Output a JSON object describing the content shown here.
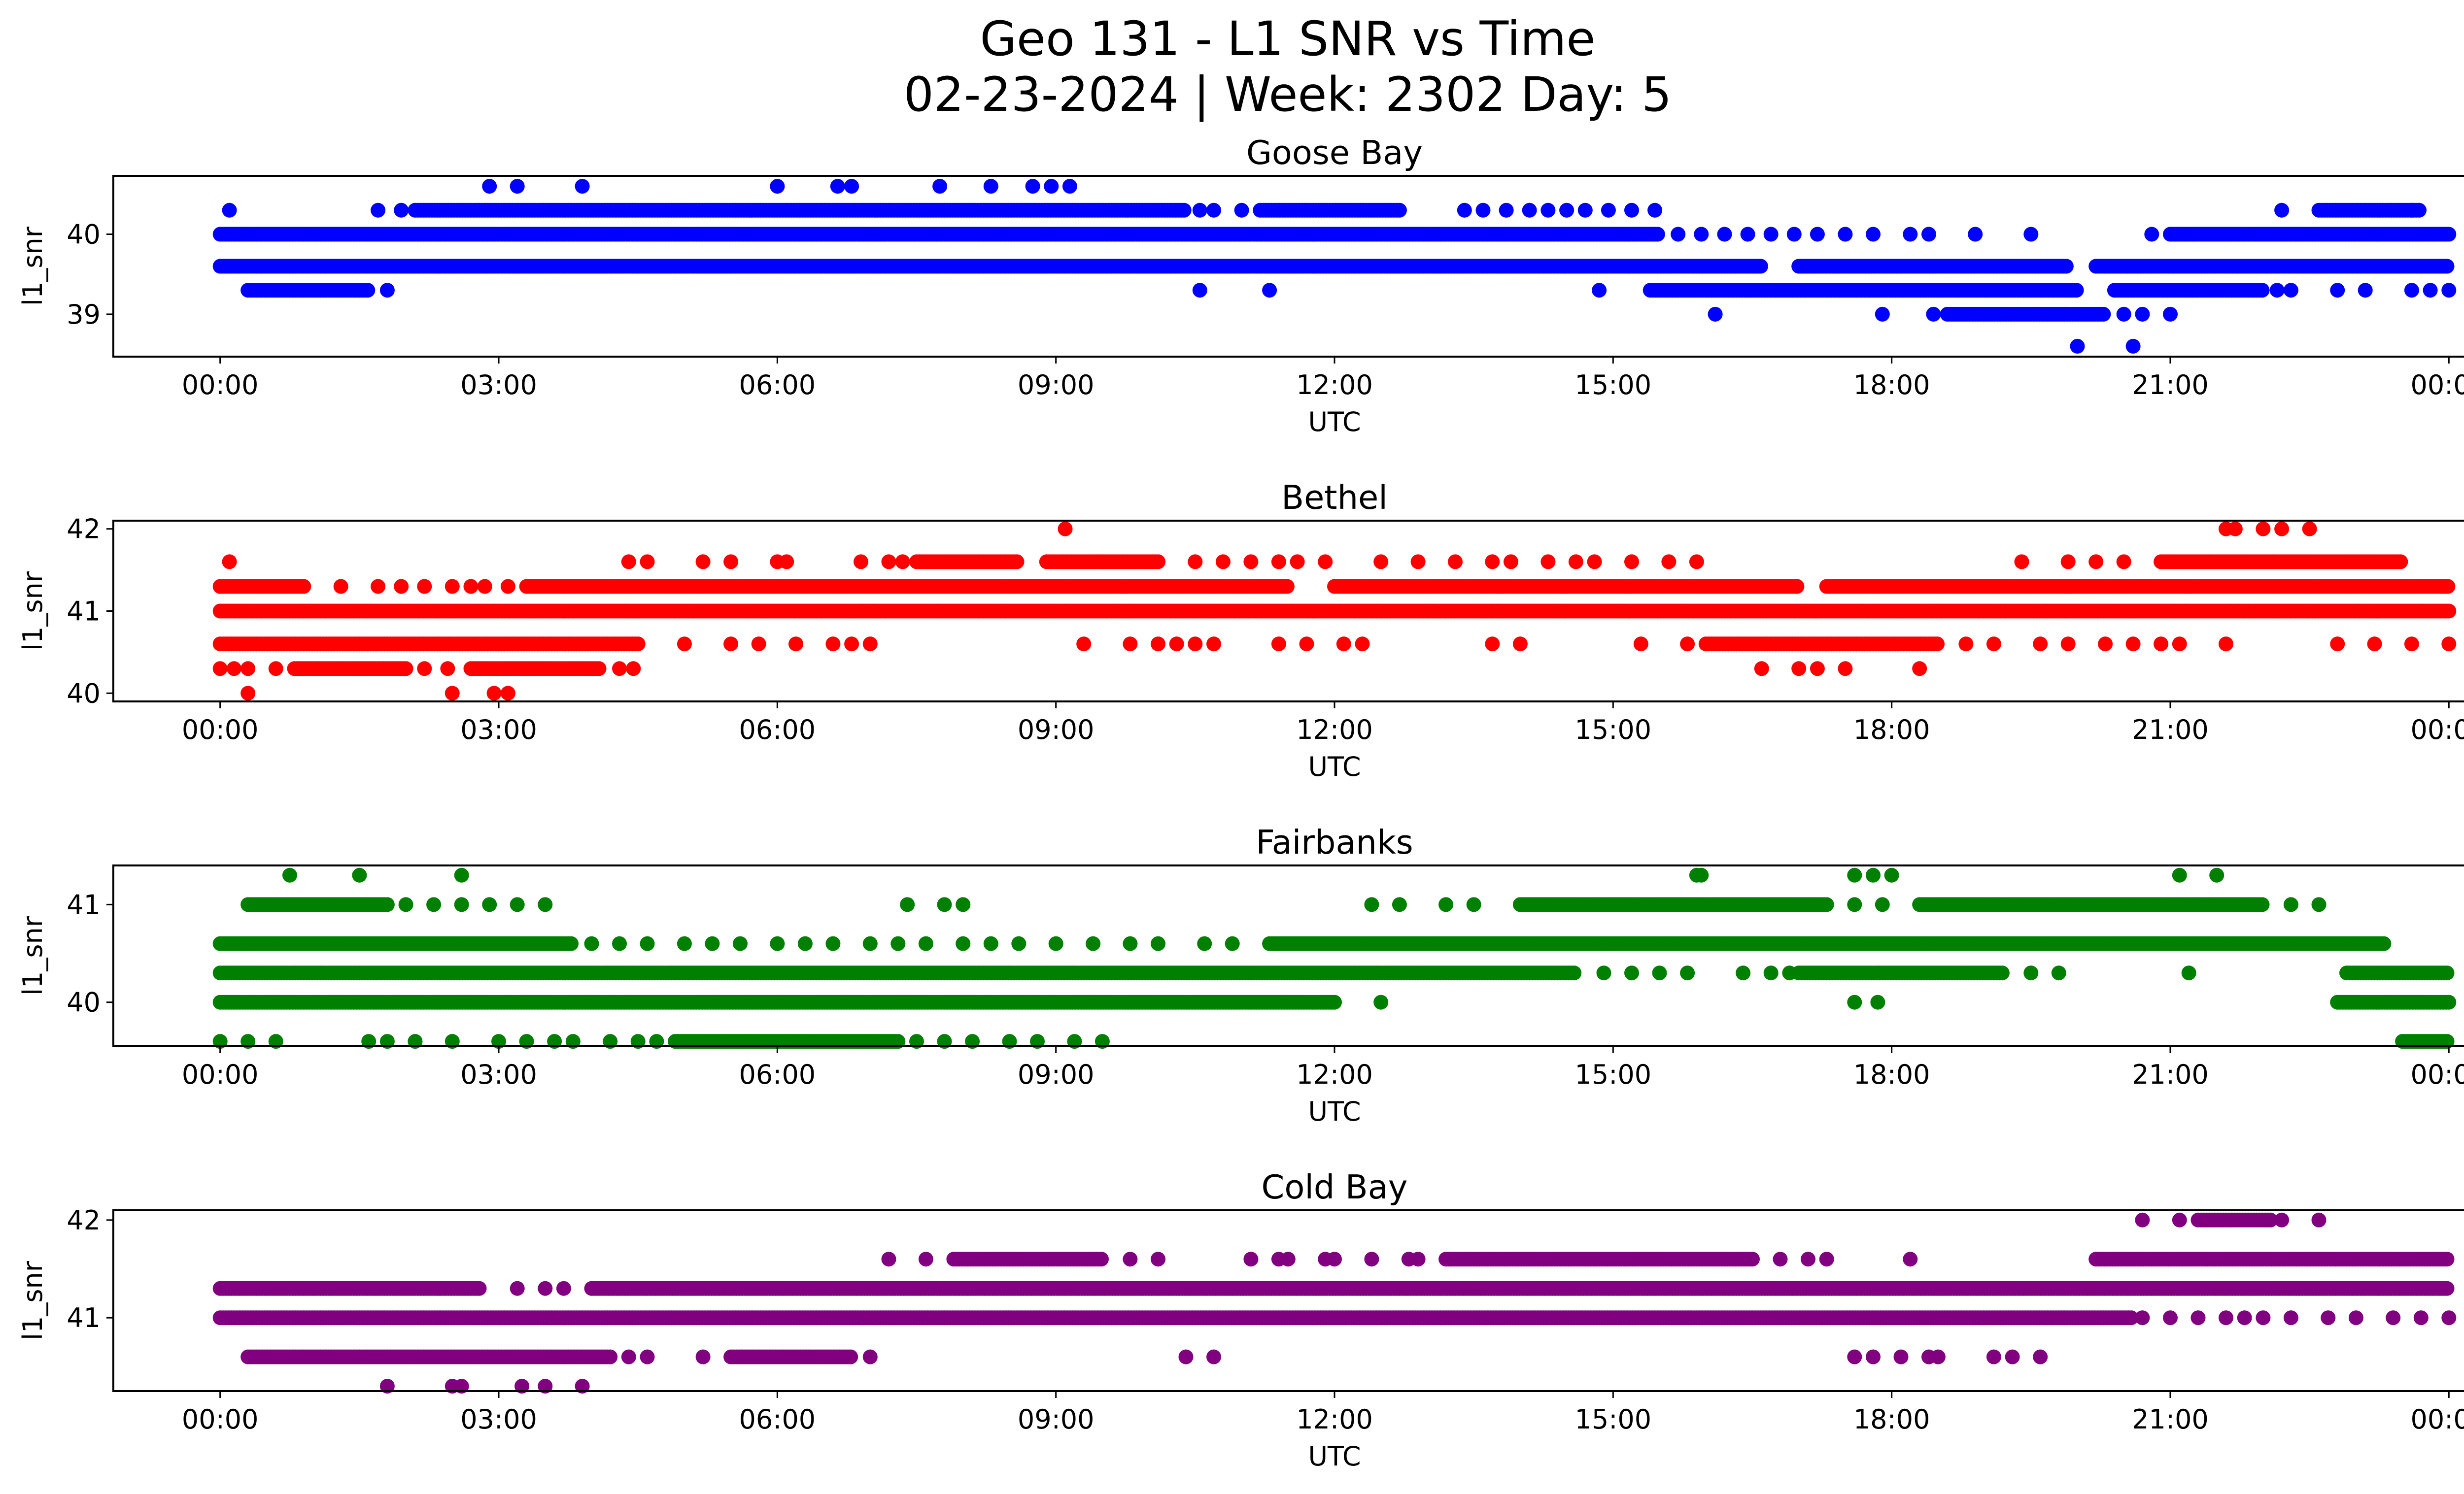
{
  "figure": {
    "title_line1": "Geo 131 - L1 SNR vs Time",
    "title_line2": "02-23-2024 | Week: 2302 Day: 5"
  },
  "chart_data": [
    {
      "type": "scatter",
      "title": "Goose Bay",
      "xlabel": "UTC",
      "ylabel": "l1_snr",
      "color": "#0000ff",
      "x_tick_labels": [
        "00:00",
        "03:00",
        "06:00",
        "09:00",
        "12:00",
        "15:00",
        "18:00",
        "21:00",
        "00:00"
      ],
      "x_ticks_hours": [
        0,
        3,
        6,
        9,
        12,
        15,
        18,
        21,
        24
      ],
      "xlim_hours": [
        -1.15,
        25.15
      ],
      "ylim": [
        38.47,
        40.73
      ],
      "y_tick_values": [
        39,
        40
      ],
      "y_tick_labels": [
        "39",
        "40"
      ],
      "series": [
        {
          "y": 40.0,
          "ranges": [
            [
              0.0,
              15.5
            ],
            [
              21.0,
              24.0
            ]
          ],
          "spots": [
            15.7,
            15.95,
            16.2,
            16.45,
            16.7,
            16.95,
            17.2,
            17.5,
            17.8,
            18.2,
            18.4,
            18.9,
            19.5,
            20.8
          ]
        },
        {
          "y": 39.6,
          "ranges": [
            [
              0.0,
              16.6
            ],
            [
              17.0,
              19.9
            ],
            [
              20.2,
              24.0
            ]
          ],
          "spots": []
        },
        {
          "y": 40.3,
          "ranges": [
            [
              2.1,
              10.4
            ],
            [
              11.2,
              12.7
            ],
            [
              22.6,
              23.7
            ]
          ],
          "spots": [
            0.1,
            1.7,
            1.95,
            10.55,
            10.7,
            11.0,
            13.4,
            13.6,
            13.85,
            14.1,
            14.3,
            14.5,
            14.7,
            14.95,
            15.2,
            15.45,
            22.2,
            23.6
          ]
        },
        {
          "y": 39.3,
          "ranges": [
            [
              0.3,
              1.6
            ],
            [
              15.4,
              20.0
            ],
            [
              20.4,
              22.0
            ]
          ],
          "spots": [
            1.8,
            10.55,
            11.3,
            14.85,
            22.15,
            22.3,
            22.8,
            23.1,
            23.6,
            23.8,
            24.0
          ]
        },
        {
          "y": 40.6,
          "ranges": [],
          "spots": [
            2.9,
            3.2,
            3.9,
            6.0,
            6.65,
            6.8,
            7.75,
            8.3,
            8.75,
            8.95,
            9.15
          ]
        },
        {
          "y": 39.0,
          "ranges": [
            [
              18.6,
              20.3
            ]
          ],
          "spots": [
            16.1,
            17.9,
            18.45,
            20.5,
            20.7,
            21.0
          ]
        },
        {
          "y": 38.6,
          "ranges": [],
          "spots": [
            20.0,
            20.6
          ]
        }
      ]
    },
    {
      "type": "scatter",
      "title": "Bethel",
      "xlabel": "UTC",
      "ylabel": "l1_snr",
      "color": "#ff0000",
      "x_tick_labels": [
        "00:00",
        "03:00",
        "06:00",
        "09:00",
        "12:00",
        "15:00",
        "18:00",
        "21:00",
        "00:00"
      ],
      "x_ticks_hours": [
        0,
        3,
        6,
        9,
        12,
        15,
        18,
        21,
        24
      ],
      "xlim_hours": [
        -1.15,
        25.15
      ],
      "ylim": [
        39.9,
        42.1
      ],
      "y_tick_values": [
        40,
        41,
        42
      ],
      "y_tick_labels": [
        "40",
        "41",
        "42"
      ],
      "series": [
        {
          "y": 41.0,
          "ranges": [
            [
              0.0,
              24.0
            ]
          ],
          "spots": []
        },
        {
          "y": 41.3,
          "ranges": [
            [
              0.0,
              0.9
            ],
            [
              3.3,
              11.5
            ],
            [
              12.0,
              17.0
            ],
            [
              17.3,
              24.0
            ]
          ],
          "spots": [
            1.3,
            1.7,
            1.95,
            2.2,
            2.5,
            2.7,
            2.85,
            3.1
          ]
        },
        {
          "y": 40.6,
          "ranges": [
            [
              0.0,
              4.5
            ],
            [
              16.0,
              18.5
            ]
          ],
          "spots": [
            5.0,
            5.5,
            5.8,
            6.2,
            6.6,
            6.8,
            7.0,
            9.3,
            9.8,
            10.1,
            10.3,
            10.5,
            10.7,
            11.4,
            11.7,
            12.1,
            12.3,
            13.7,
            14.0,
            15.3,
            15.8,
            18.8,
            19.1,
            19.6,
            19.9,
            20.3,
            20.6,
            20.9,
            21.1,
            21.6,
            22.8,
            23.2,
            23.6,
            24.0
          ]
        },
        {
          "y": 40.3,
          "ranges": [
            [
              0.8,
              2.0
            ],
            [
              2.7,
              4.1
            ]
          ],
          "spots": [
            0.0,
            0.15,
            0.3,
            0.6,
            2.2,
            2.45,
            4.3,
            4.45,
            16.6,
            17.0,
            17.2,
            17.5,
            18.3
          ]
        },
        {
          "y": 41.6,
          "ranges": [
            [
              7.5,
              8.6
            ],
            [
              8.9,
              10.1
            ],
            [
              20.9,
              23.5
            ]
          ],
          "spots": [
            0.1,
            4.4,
            4.6,
            5.2,
            5.5,
            6.0,
            6.1,
            6.9,
            7.2,
            7.35,
            9.5,
            10.5,
            10.8,
            11.1,
            11.4,
            11.6,
            11.9,
            12.5,
            12.9,
            13.3,
            13.7,
            13.9,
            14.3,
            14.6,
            14.8,
            15.2,
            15.6,
            15.9,
            19.4,
            19.9,
            20.2,
            20.5
          ]
        },
        {
          "y": 42.0,
          "ranges": [],
          "spots": [
            9.1,
            21.6,
            21.7,
            22.0,
            22.2,
            22.5
          ]
        },
        {
          "y": 40.0,
          "ranges": [],
          "spots": [
            0.3,
            2.5,
            2.95,
            3.1
          ]
        }
      ]
    },
    {
      "type": "scatter",
      "title": "Fairbanks",
      "xlabel": "UTC",
      "ylabel": "l1_snr",
      "color": "#008000",
      "x_tick_labels": [
        "00:00",
        "03:00",
        "06:00",
        "09:00",
        "12:00",
        "15:00",
        "18:00",
        "21:00",
        "00:00"
      ],
      "x_ticks_hours": [
        0,
        3,
        6,
        9,
        12,
        15,
        18,
        21,
        24
      ],
      "xlim_hours": [
        -1.15,
        25.15
      ],
      "ylim": [
        39.55,
        41.4
      ],
      "y_tick_values": [
        40,
        41
      ],
      "y_tick_labels": [
        "40",
        "41"
      ],
      "series": [
        {
          "y": 40.3,
          "ranges": [
            [
              0.0,
              14.6
            ],
            [
              17.0,
              19.2
            ],
            [
              22.9,
              24.0
            ]
          ],
          "spots": [
            14.9,
            15.2,
            15.5,
            15.8,
            16.4,
            16.7,
            16.9,
            19.5,
            19.8,
            21.2
          ]
        },
        {
          "y": 40.6,
          "ranges": [
            [
              0.0,
              3.8
            ],
            [
              11.3,
              23.3
            ]
          ],
          "spots": [
            4.0,
            4.3,
            4.6,
            5.0,
            5.3,
            5.6,
            6.0,
            6.3,
            6.6,
            7.0,
            7.3,
            7.6,
            8.0,
            8.3,
            8.6,
            9.0,
            9.4,
            9.8,
            10.1,
            10.6,
            10.9
          ]
        },
        {
          "y": 40.0,
          "ranges": [
            [
              0.0,
              12.0
            ],
            [
              22.8,
              24.0
            ]
          ],
          "spots": [
            12.5,
            17.6,
            17.85
          ]
        },
        {
          "y": 41.0,
          "ranges": [
            [
              0.3,
              1.8
            ],
            [
              14.0,
              17.3
            ],
            [
              18.3,
              22.0
            ]
          ],
          "spots": [
            2.0,
            2.3,
            2.6,
            2.9,
            3.2,
            3.5,
            7.4,
            7.8,
            8.0,
            12.4,
            12.7,
            13.2,
            13.5,
            17.6,
            17.9,
            22.3,
            22.6
          ]
        },
        {
          "y": 41.3,
          "ranges": [],
          "spots": [
            0.75,
            1.5,
            2.6,
            15.9,
            15.95,
            17.6,
            17.8,
            18.0,
            21.1,
            21.5
          ]
        },
        {
          "y": 39.6,
          "ranges": [
            [
              4.9,
              7.3
            ],
            [
              23.5,
              24.0
            ]
          ],
          "spots": [
            0.0,
            0.3,
            0.6,
            1.6,
            1.8,
            2.1,
            2.5,
            3.0,
            3.3,
            3.6,
            3.8,
            4.2,
            4.5,
            4.7,
            7.5,
            7.8,
            8.1,
            8.5,
            8.8,
            9.2,
            9.5
          ]
        }
      ]
    },
    {
      "type": "scatter",
      "title": "Cold Bay",
      "xlabel": "UTC",
      "ylabel": "l1_snr",
      "color": "#800080",
      "x_tick_labels": [
        "00:00",
        "03:00",
        "06:00",
        "09:00",
        "12:00",
        "15:00",
        "18:00",
        "21:00",
        "00:00"
      ],
      "x_ticks_hours": [
        0,
        3,
        6,
        9,
        12,
        15,
        18,
        21,
        24
      ],
      "xlim_hours": [
        -1.15,
        25.15
      ],
      "ylim": [
        40.25,
        42.1
      ],
      "y_tick_values": [
        41,
        42
      ],
      "y_tick_labels": [
        "41",
        "42"
      ],
      "series": [
        {
          "y": 41.3,
          "ranges": [
            [
              0.0,
              2.8
            ],
            [
              4.0,
              24.0
            ]
          ],
          "spots": [
            3.2,
            3.5,
            3.7
          ]
        },
        {
          "y": 41.0,
          "ranges": [
            [
              0.0,
              20.6
            ]
          ],
          "spots": [
            20.7,
            21.0,
            21.3,
            21.6,
            21.8,
            22.0,
            22.3,
            22.7,
            23.0,
            23.4,
            23.7,
            24.0
          ]
        },
        {
          "y": 40.6,
          "ranges": [
            [
              0.3,
              4.2
            ],
            [
              5.5,
              6.8
            ]
          ],
          "spots": [
            4.4,
            4.6,
            5.2,
            7.0,
            10.4,
            10.7,
            17.6,
            17.8,
            18.1,
            18.4,
            18.5,
            19.1,
            19.3,
            19.6
          ]
        },
        {
          "y": 41.6,
          "ranges": [
            [
              7.9,
              9.5
            ],
            [
              13.2,
              16.5
            ],
            [
              20.2,
              24.0
            ]
          ],
          "spots": [
            7.2,
            7.6,
            9.8,
            10.1,
            11.1,
            11.4,
            11.5,
            11.9,
            12.0,
            12.4,
            12.8,
            12.9,
            16.8,
            17.1,
            17.3,
            18.2
          ]
        },
        {
          "y": 42.0,
          "ranges": [
            [
              21.3,
              22.1
            ]
          ],
          "spots": [
            20.7,
            21.1,
            22.2,
            22.6
          ]
        },
        {
          "y": 40.3,
          "ranges": [],
          "spots": [
            1.8,
            2.5,
            2.6,
            3.25,
            3.5,
            3.9
          ]
        }
      ]
    }
  ]
}
